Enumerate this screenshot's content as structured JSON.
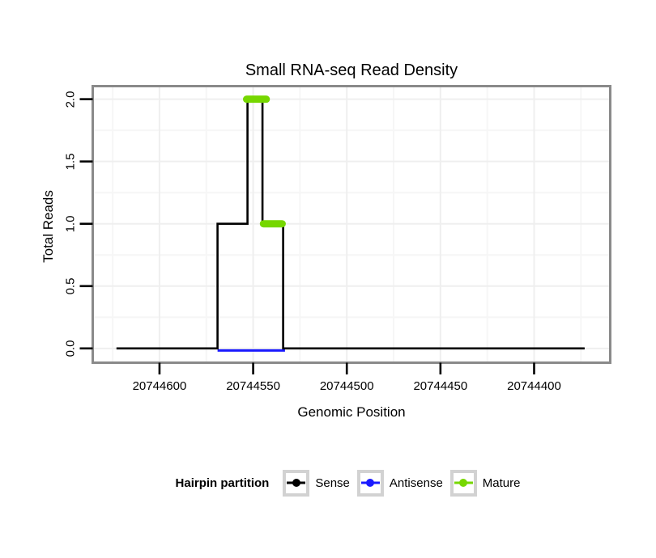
{
  "chart_data": {
    "type": "line",
    "subtype": "step-density",
    "title": "Small RNA-seq Read Density",
    "xlabel": "Genomic Position",
    "ylabel": "Total Reads",
    "grid": "on",
    "x_axis": {
      "reversed": true,
      "range": [
        20744635,
        20744360
      ],
      "ticks": [
        20744600,
        20744550,
        20744500,
        20744450,
        20744400
      ],
      "minor_ticks": [
        20744625,
        20744575,
        20744525,
        20744475,
        20744425,
        20744375
      ]
    },
    "y_axis": {
      "range": [
        -0.105,
        2.095
      ],
      "ticks": [
        2.0,
        1.5,
        1.0,
        0.5,
        0.0
      ],
      "tick_labels": [
        "2.0",
        "1.5",
        "1.0",
        "0.5",
        "0.0"
      ],
      "minor_ticks": [
        1.75,
        1.25,
        0.75,
        0.25
      ]
    },
    "series": [
      {
        "name": "Antisense",
        "color": "#1A1AFF",
        "type": "segment",
        "width": 3,
        "linecap": "butt",
        "render_offset_y": 2.5,
        "segments": [
          {
            "y": 0,
            "from": 20744569,
            "to": 20744533
          }
        ]
      },
      {
        "name": "Sense",
        "color": "#000000",
        "type": "step",
        "width": 2.6,
        "points": [
          [
            20744623,
            0
          ],
          [
            20744569,
            0
          ],
          [
            20744569,
            1
          ],
          [
            20744553,
            1
          ],
          [
            20744553,
            2
          ],
          [
            20744545,
            2
          ],
          [
            20744545,
            1
          ],
          [
            20744534,
            1
          ],
          [
            20744534,
            0
          ],
          [
            20744373,
            0
          ]
        ]
      },
      {
        "name": "Mature",
        "color": "#76D700",
        "type": "segment",
        "width": 9,
        "linecap": "round",
        "render_offset_y": 0,
        "segments": [
          {
            "y": 2,
            "from": 20744553.5,
            "to": 20744543
          },
          {
            "y": 1,
            "from": 20744544.5,
            "to": 20744534.5
          }
        ]
      }
    ],
    "legend": {
      "position": "bottom",
      "title": "Hairpin partition",
      "items": [
        {
          "label": "Sense",
          "color": "#000000"
        },
        {
          "label": "Antisense",
          "color": "#1A1AFF"
        },
        {
          "label": "Mature",
          "color": "#76D700"
        }
      ]
    },
    "style_colors": {
      "panel_border": "#8A8A8A",
      "major_grid": "#EFEFEF",
      "minor_grid": "#F6F6F6",
      "tick": "#000000",
      "legend_key_border": "#D2D2D2"
    }
  }
}
